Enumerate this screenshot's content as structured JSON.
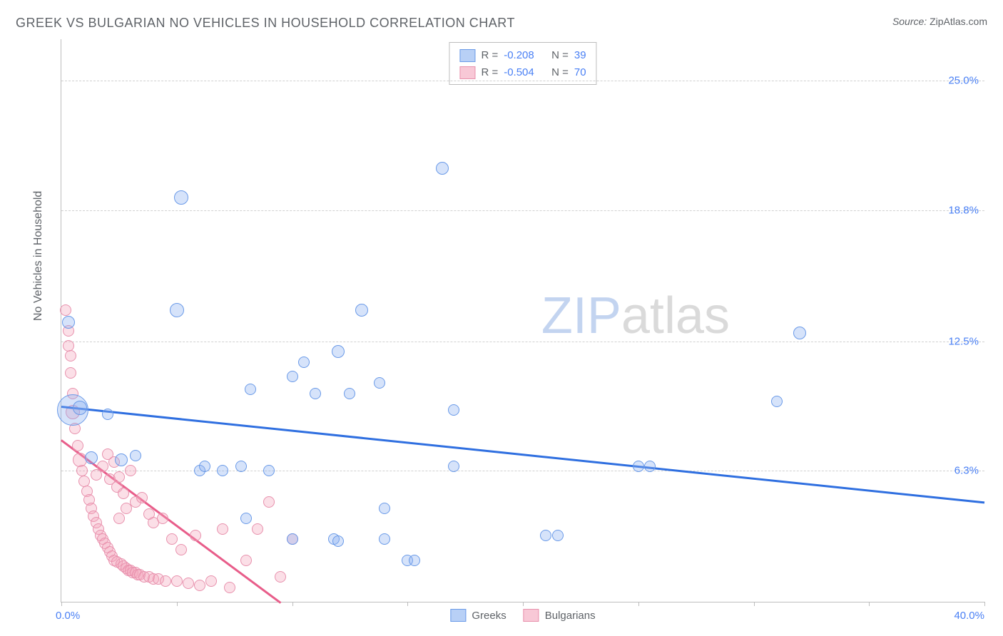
{
  "title": "GREEK VS BULGARIAN NO VEHICLES IN HOUSEHOLD CORRELATION CHART",
  "source": {
    "label": "Source:",
    "value": "ZipAtlas.com"
  },
  "watermark": {
    "zip": "ZIP",
    "atlas": "atlas"
  },
  "chart": {
    "type": "scatter",
    "ylabel": "No Vehicles in Household",
    "xlim": [
      0.0,
      40.0
    ],
    "ylim": [
      0.0,
      27.0
    ],
    "xtick_step": 5.0,
    "xmin_label": "0.0%",
    "xmax_label": "40.0%",
    "yticks": [
      {
        "v": 6.3,
        "label": "6.3%"
      },
      {
        "v": 12.5,
        "label": "12.5%"
      },
      {
        "v": 18.8,
        "label": "18.8%"
      },
      {
        "v": 25.0,
        "label": "25.0%"
      }
    ],
    "grid_color": "#d0d0d0",
    "axis_color": "#bdbdbd",
    "background_color": "#ffffff",
    "label_color": "#5f6368",
    "tick_label_color": "#4a80f5",
    "series": [
      {
        "id": "greeks",
        "label": "Greeks",
        "color_fill": "rgba(137,176,240,0.35)",
        "color_stroke": "#6a9ae8",
        "trend_color": "#2f6fe0",
        "R": "-0.208",
        "N": "39",
        "trend": {
          "x1": 0.0,
          "y1": 9.4,
          "x2": 40.0,
          "y2": 4.8
        },
        "points": [
          {
            "x": 0.3,
            "y": 13.4,
            "r": 9
          },
          {
            "x": 0.5,
            "y": 9.2,
            "r": 22
          },
          {
            "x": 0.8,
            "y": 9.3,
            "r": 10
          },
          {
            "x": 1.3,
            "y": 6.9,
            "r": 9
          },
          {
            "x": 2.0,
            "y": 9.0,
            "r": 8
          },
          {
            "x": 2.6,
            "y": 6.8,
            "r": 9
          },
          {
            "x": 3.2,
            "y": 7.0,
            "r": 8
          },
          {
            "x": 5.0,
            "y": 14.0,
            "r": 10
          },
          {
            "x": 5.2,
            "y": 19.4,
            "r": 10
          },
          {
            "x": 6.0,
            "y": 6.3,
            "r": 8
          },
          {
            "x": 6.2,
            "y": 6.5,
            "r": 8
          },
          {
            "x": 7.0,
            "y": 6.3,
            "r": 8
          },
          {
            "x": 7.8,
            "y": 6.5,
            "r": 8
          },
          {
            "x": 8.0,
            "y": 4.0,
            "r": 8
          },
          {
            "x": 8.2,
            "y": 10.2,
            "r": 8
          },
          {
            "x": 9.0,
            "y": 6.3,
            "r": 8
          },
          {
            "x": 10.0,
            "y": 10.8,
            "r": 8
          },
          {
            "x": 10.0,
            "y": 3.0,
            "r": 8
          },
          {
            "x": 10.5,
            "y": 11.5,
            "r": 8
          },
          {
            "x": 11.0,
            "y": 10.0,
            "r": 8
          },
          {
            "x": 11.8,
            "y": 3.0,
            "r": 8
          },
          {
            "x": 12.0,
            "y": 12.0,
            "r": 9
          },
          {
            "x": 12.0,
            "y": 2.9,
            "r": 8
          },
          {
            "x": 12.5,
            "y": 10.0,
            "r": 8
          },
          {
            "x": 13.0,
            "y": 14.0,
            "r": 9
          },
          {
            "x": 13.8,
            "y": 10.5,
            "r": 8
          },
          {
            "x": 14.0,
            "y": 3.0,
            "r": 8
          },
          {
            "x": 14.0,
            "y": 4.5,
            "r": 8
          },
          {
            "x": 15.0,
            "y": 2.0,
            "r": 8
          },
          {
            "x": 15.3,
            "y": 2.0,
            "r": 8
          },
          {
            "x": 16.5,
            "y": 20.8,
            "r": 9
          },
          {
            "x": 17.0,
            "y": 6.5,
            "r": 8
          },
          {
            "x": 17.0,
            "y": 9.2,
            "r": 8
          },
          {
            "x": 21.0,
            "y": 3.2,
            "r": 8
          },
          {
            "x": 21.5,
            "y": 3.2,
            "r": 8
          },
          {
            "x": 25.0,
            "y": 6.5,
            "r": 8
          },
          {
            "x": 25.5,
            "y": 6.5,
            "r": 8
          },
          {
            "x": 31.0,
            "y": 9.6,
            "r": 8
          },
          {
            "x": 32.0,
            "y": 12.9,
            "r": 9
          }
        ]
      },
      {
        "id": "bulgarians",
        "label": "Bulgarians",
        "color_fill": "rgba(244,164,187,0.35)",
        "color_stroke": "#e891ad",
        "trend_color": "#e85d8a",
        "R": "-0.504",
        "N": "70",
        "trend": {
          "x1": 0.0,
          "y1": 7.8,
          "x2": 9.5,
          "y2": 0.0
        },
        "points": [
          {
            "x": 0.2,
            "y": 14.0,
            "r": 8
          },
          {
            "x": 0.3,
            "y": 13.0,
            "r": 8
          },
          {
            "x": 0.3,
            "y": 12.3,
            "r": 8
          },
          {
            "x": 0.4,
            "y": 11.8,
            "r": 8
          },
          {
            "x": 0.4,
            "y": 11.0,
            "r": 8
          },
          {
            "x": 0.5,
            "y": 10.0,
            "r": 8
          },
          {
            "x": 0.5,
            "y": 9.1,
            "r": 10
          },
          {
            "x": 0.6,
            "y": 8.3,
            "r": 8
          },
          {
            "x": 0.7,
            "y": 7.5,
            "r": 8
          },
          {
            "x": 0.8,
            "y": 6.8,
            "r": 10
          },
          {
            "x": 0.9,
            "y": 6.3,
            "r": 8
          },
          {
            "x": 1.0,
            "y": 5.8,
            "r": 8
          },
          {
            "x": 1.1,
            "y": 5.3,
            "r": 8
          },
          {
            "x": 1.2,
            "y": 4.9,
            "r": 8
          },
          {
            "x": 1.3,
            "y": 4.5,
            "r": 8
          },
          {
            "x": 1.4,
            "y": 4.1,
            "r": 8
          },
          {
            "x": 1.5,
            "y": 6.1,
            "r": 8
          },
          {
            "x": 1.5,
            "y": 3.8,
            "r": 8
          },
          {
            "x": 1.6,
            "y": 3.5,
            "r": 8
          },
          {
            "x": 1.7,
            "y": 3.2,
            "r": 8
          },
          {
            "x": 1.8,
            "y": 6.5,
            "r": 8
          },
          {
            "x": 1.8,
            "y": 3.0,
            "r": 8
          },
          {
            "x": 1.9,
            "y": 2.8,
            "r": 8
          },
          {
            "x": 2.0,
            "y": 7.1,
            "r": 8
          },
          {
            "x": 2.0,
            "y": 2.6,
            "r": 8
          },
          {
            "x": 2.1,
            "y": 5.9,
            "r": 8
          },
          {
            "x": 2.1,
            "y": 2.4,
            "r": 8
          },
          {
            "x": 2.2,
            "y": 2.2,
            "r": 8
          },
          {
            "x": 2.3,
            "y": 6.7,
            "r": 8
          },
          {
            "x": 2.3,
            "y": 2.0,
            "r": 8
          },
          {
            "x": 2.4,
            "y": 5.5,
            "r": 8
          },
          {
            "x": 2.4,
            "y": 1.9,
            "r": 8
          },
          {
            "x": 2.5,
            "y": 6.0,
            "r": 8
          },
          {
            "x": 2.5,
            "y": 4.0,
            "r": 8
          },
          {
            "x": 2.6,
            "y": 1.8,
            "r": 8
          },
          {
            "x": 2.7,
            "y": 5.2,
            "r": 8
          },
          {
            "x": 2.7,
            "y": 1.7,
            "r": 8
          },
          {
            "x": 2.8,
            "y": 4.5,
            "r": 8
          },
          {
            "x": 2.8,
            "y": 1.6,
            "r": 8
          },
          {
            "x": 2.9,
            "y": 1.5,
            "r": 8
          },
          {
            "x": 3.0,
            "y": 6.3,
            "r": 8
          },
          {
            "x": 3.0,
            "y": 1.5,
            "r": 8
          },
          {
            "x": 3.1,
            "y": 1.4,
            "r": 8
          },
          {
            "x": 3.2,
            "y": 4.8,
            "r": 8
          },
          {
            "x": 3.2,
            "y": 1.4,
            "r": 8
          },
          {
            "x": 3.3,
            "y": 1.3,
            "r": 8
          },
          {
            "x": 3.4,
            "y": 1.3,
            "r": 8
          },
          {
            "x": 3.5,
            "y": 5.0,
            "r": 8
          },
          {
            "x": 3.6,
            "y": 1.2,
            "r": 8
          },
          {
            "x": 3.8,
            "y": 4.2,
            "r": 8
          },
          {
            "x": 3.8,
            "y": 1.2,
            "r": 8
          },
          {
            "x": 4.0,
            "y": 3.8,
            "r": 8
          },
          {
            "x": 4.0,
            "y": 1.1,
            "r": 8
          },
          {
            "x": 4.2,
            "y": 1.1,
            "r": 8
          },
          {
            "x": 4.4,
            "y": 4.0,
            "r": 8
          },
          {
            "x": 4.5,
            "y": 1.0,
            "r": 8
          },
          {
            "x": 4.8,
            "y": 3.0,
            "r": 8
          },
          {
            "x": 5.0,
            "y": 1.0,
            "r": 8
          },
          {
            "x": 5.2,
            "y": 2.5,
            "r": 8
          },
          {
            "x": 5.5,
            "y": 0.9,
            "r": 8
          },
          {
            "x": 5.8,
            "y": 3.2,
            "r": 8
          },
          {
            "x": 6.0,
            "y": 0.8,
            "r": 8
          },
          {
            "x": 6.5,
            "y": 1.0,
            "r": 8
          },
          {
            "x": 7.0,
            "y": 3.5,
            "r": 8
          },
          {
            "x": 7.3,
            "y": 0.7,
            "r": 8
          },
          {
            "x": 8.0,
            "y": 2.0,
            "r": 8
          },
          {
            "x": 8.5,
            "y": 3.5,
            "r": 8
          },
          {
            "x": 9.0,
            "y": 4.8,
            "r": 8
          },
          {
            "x": 9.5,
            "y": 1.2,
            "r": 8
          },
          {
            "x": 10.0,
            "y": 3.0,
            "r": 8
          }
        ]
      }
    ],
    "stats_legend": {
      "r_label": "R =",
      "n_label": "N ="
    },
    "bottom_legend": [
      {
        "swatch": "blue",
        "label": "Greeks"
      },
      {
        "swatch": "pink",
        "label": "Bulgarians"
      }
    ]
  }
}
